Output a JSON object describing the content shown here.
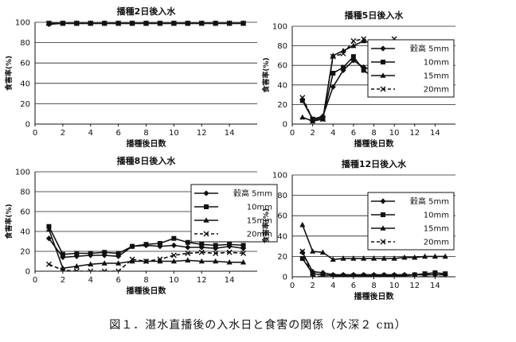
{
  "figure": {
    "caption": "図１．湛水直播後の入水日と食害の関係（水深２ cm）"
  },
  "chart_data": [
    {
      "type": "line",
      "title": "播種2日後入水",
      "xlabel": "播種後日数",
      "ylabel": "食害率(%)",
      "xlim": [
        0,
        16
      ],
      "ylim": [
        0,
        100
      ],
      "xticks": [
        0,
        2,
        4,
        6,
        8,
        10,
        12,
        14
      ],
      "yticks": [
        0,
        20,
        40,
        60,
        80,
        100
      ],
      "grid": true,
      "legend": "none",
      "series": [
        {
          "name": "穀高 5mm",
          "marker": "diamond",
          "dash": "solid",
          "x": [
            1,
            2,
            3,
            4,
            5,
            6,
            7,
            8,
            9,
            10,
            11,
            12,
            13,
            14,
            15
          ],
          "y": [
            98,
            99,
            99,
            99,
            99,
            99,
            99,
            99,
            99,
            99,
            99,
            99,
            99,
            99,
            99
          ]
        },
        {
          "name": "10mm",
          "marker": "square",
          "dash": "solid",
          "x": [
            1,
            2,
            3,
            4,
            5,
            6,
            7,
            8,
            9,
            10,
            11,
            12,
            13,
            14,
            15
          ],
          "y": [
            99,
            99,
            99,
            99,
            99,
            99,
            99,
            99,
            99,
            99,
            99,
            99,
            99,
            99,
            99
          ]
        },
        {
          "name": "15mm",
          "marker": "triangle",
          "dash": "solid",
          "x": [
            1,
            2,
            3,
            4,
            5,
            6,
            7,
            8,
            9,
            10,
            11,
            12,
            13,
            14,
            15
          ],
          "y": [
            99,
            99,
            99,
            99,
            99,
            99,
            99,
            99,
            99,
            99,
            99,
            99,
            99,
            99,
            99
          ]
        },
        {
          "name": "20mm",
          "marker": "x",
          "dash": "dashed",
          "x": [
            1,
            2,
            3,
            4,
            5,
            6,
            7,
            8,
            9,
            10,
            11,
            12,
            13,
            14,
            15
          ],
          "y": [
            99,
            99,
            99,
            99,
            99,
            99,
            99,
            99,
            99,
            99,
            99,
            99,
            99,
            99,
            99
          ]
        }
      ]
    },
    {
      "type": "line",
      "title": "播種5日後入水",
      "xlabel": "播種後日数",
      "ylabel": "食害率(%)",
      "xlim": [
        0,
        16
      ],
      "ylim": [
        0,
        100
      ],
      "xticks": [
        0,
        2,
        4,
        6,
        8,
        10,
        12,
        14
      ],
      "yticks": [
        0,
        20,
        40,
        60,
        80,
        100
      ],
      "grid": true,
      "legend": "right",
      "series": [
        {
          "name": "穀高 5mm",
          "marker": "diamond",
          "dash": "solid",
          "x": [
            1,
            2,
            3,
            4,
            5,
            6,
            7,
            8,
            9,
            10,
            11,
            12,
            13,
            14,
            15
          ],
          "y": [
            25,
            5,
            8,
            38,
            55,
            65,
            58,
            55,
            53,
            53,
            52,
            50,
            49,
            47,
            46
          ]
        },
        {
          "name": "10mm",
          "marker": "square",
          "dash": "solid",
          "x": [
            1,
            2,
            3,
            4,
            5,
            6,
            7,
            8,
            9,
            10,
            11,
            12,
            13,
            14,
            15
          ],
          "y": [
            24,
            5,
            6,
            52,
            58,
            69,
            55,
            47,
            43,
            48,
            51,
            46,
            44,
            42,
            41
          ]
        },
        {
          "name": "15mm",
          "marker": "triangle",
          "dash": "solid",
          "x": [
            1,
            2,
            3,
            4,
            5,
            6,
            7,
            8,
            9,
            10,
            11,
            12,
            13,
            14,
            15
          ],
          "y": [
            7,
            3,
            5,
            70,
            75,
            80,
            85,
            82,
            72,
            77,
            70,
            64,
            63,
            63,
            62
          ]
        },
        {
          "name": "20mm",
          "marker": "x",
          "dash": "dashed",
          "x": [
            1,
            2,
            3,
            4,
            5,
            6,
            7,
            8,
            9,
            10,
            11,
            12,
            13,
            14,
            15
          ],
          "y": [
            27,
            5,
            5,
            69,
            72,
            85,
            87,
            82,
            79,
            87,
            83,
            78,
            80,
            79,
            79
          ]
        }
      ]
    },
    {
      "type": "line",
      "title": "播種8日後入水",
      "xlabel": "播種後日数",
      "ylabel": "食害率(%)",
      "xlim": [
        0,
        16
      ],
      "ylim": [
        0,
        100
      ],
      "xticks": [
        0,
        2,
        4,
        6,
        8,
        10,
        12,
        14
      ],
      "yticks": [
        0,
        20,
        40,
        60,
        80,
        100
      ],
      "grid": true,
      "legend": "right",
      "series": [
        {
          "name": "穀高 5mm",
          "marker": "diamond",
          "dash": "solid",
          "x": [
            1,
            2,
            3,
            4,
            5,
            6,
            7,
            8,
            9,
            10,
            11,
            12,
            13,
            14,
            15
          ],
          "y": [
            33,
            14,
            15,
            16,
            16,
            15,
            25,
            26,
            25,
            26,
            24,
            24,
            23,
            25,
            23
          ]
        },
        {
          "name": "10mm",
          "marker": "square",
          "dash": "solid",
          "x": [
            1,
            2,
            3,
            4,
            5,
            6,
            7,
            8,
            9,
            10,
            11,
            12,
            13,
            14,
            15
          ],
          "y": [
            45,
            17,
            18,
            18,
            19,
            18,
            25,
            27,
            28,
            33,
            29,
            27,
            26,
            27,
            26
          ]
        },
        {
          "name": "15mm",
          "marker": "triangle",
          "dash": "solid",
          "x": [
            1,
            2,
            3,
            4,
            5,
            6,
            7,
            8,
            9,
            10,
            11,
            12,
            13,
            14,
            15
          ],
          "y": [
            42,
            3,
            5,
            7,
            8,
            8,
            10,
            10,
            10,
            10,
            11,
            10,
            10,
            9,
            9
          ]
        },
        {
          "name": "20mm",
          "marker": "x",
          "dash": "dashed",
          "x": [
            1,
            2,
            3,
            4,
            5,
            6,
            7,
            8,
            9,
            10,
            11,
            12,
            13,
            14,
            15
          ],
          "y": [
            7,
            1,
            0,
            0,
            0,
            0,
            12,
            10,
            12,
            16,
            18,
            19,
            18,
            19,
            18
          ]
        }
      ]
    },
    {
      "type": "line",
      "title": "播種12日後入水",
      "xlabel": "播種後日数",
      "ylabel": "食害率(%)",
      "xlim": [
        0,
        16
      ],
      "ylim": [
        0,
        100
      ],
      "xticks": [
        0,
        2,
        4,
        6,
        8,
        10,
        12,
        14
      ],
      "yticks": [
        0,
        20,
        40,
        60,
        80,
        100
      ],
      "grid": true,
      "legend": "right",
      "series": [
        {
          "name": "穀高 5mm",
          "marker": "diamond",
          "dash": "solid",
          "x": [
            1,
            2,
            3,
            4,
            5,
            6,
            7,
            8,
            9,
            10,
            11,
            12,
            13,
            14,
            15
          ],
          "y": [
            24,
            5,
            4,
            2,
            2,
            2,
            2,
            2,
            2,
            2,
            2,
            2,
            2,
            2,
            2
          ]
        },
        {
          "name": "10mm",
          "marker": "square",
          "dash": "solid",
          "x": [
            1,
            2,
            3,
            4,
            5,
            6,
            7,
            8,
            9,
            10,
            11,
            12,
            13,
            14,
            15
          ],
          "y": [
            18,
            3,
            2,
            1,
            1,
            1,
            1,
            1,
            1,
            1,
            1,
            2,
            3,
            4,
            3
          ]
        },
        {
          "name": "15mm",
          "marker": "triangle",
          "dash": "solid",
          "x": [
            1,
            2,
            3,
            4,
            5,
            6,
            7,
            8,
            9,
            10,
            11,
            12,
            13,
            14,
            15
          ],
          "y": [
            51,
            25,
            24,
            17,
            18,
            18,
            18,
            18,
            18,
            18,
            19,
            19,
            20,
            20,
            20
          ]
        },
        {
          "name": "20mm",
          "marker": "x",
          "dash": "dashed",
          "x": [
            1,
            2,
            3,
            4,
            5,
            6,
            7,
            8,
            9,
            10,
            11,
            12,
            13,
            14,
            15
          ],
          "y": [
            25,
            1,
            0,
            0,
            0,
            0,
            0,
            0,
            0,
            0,
            0,
            0,
            0,
            0,
            0
          ]
        }
      ]
    }
  ]
}
